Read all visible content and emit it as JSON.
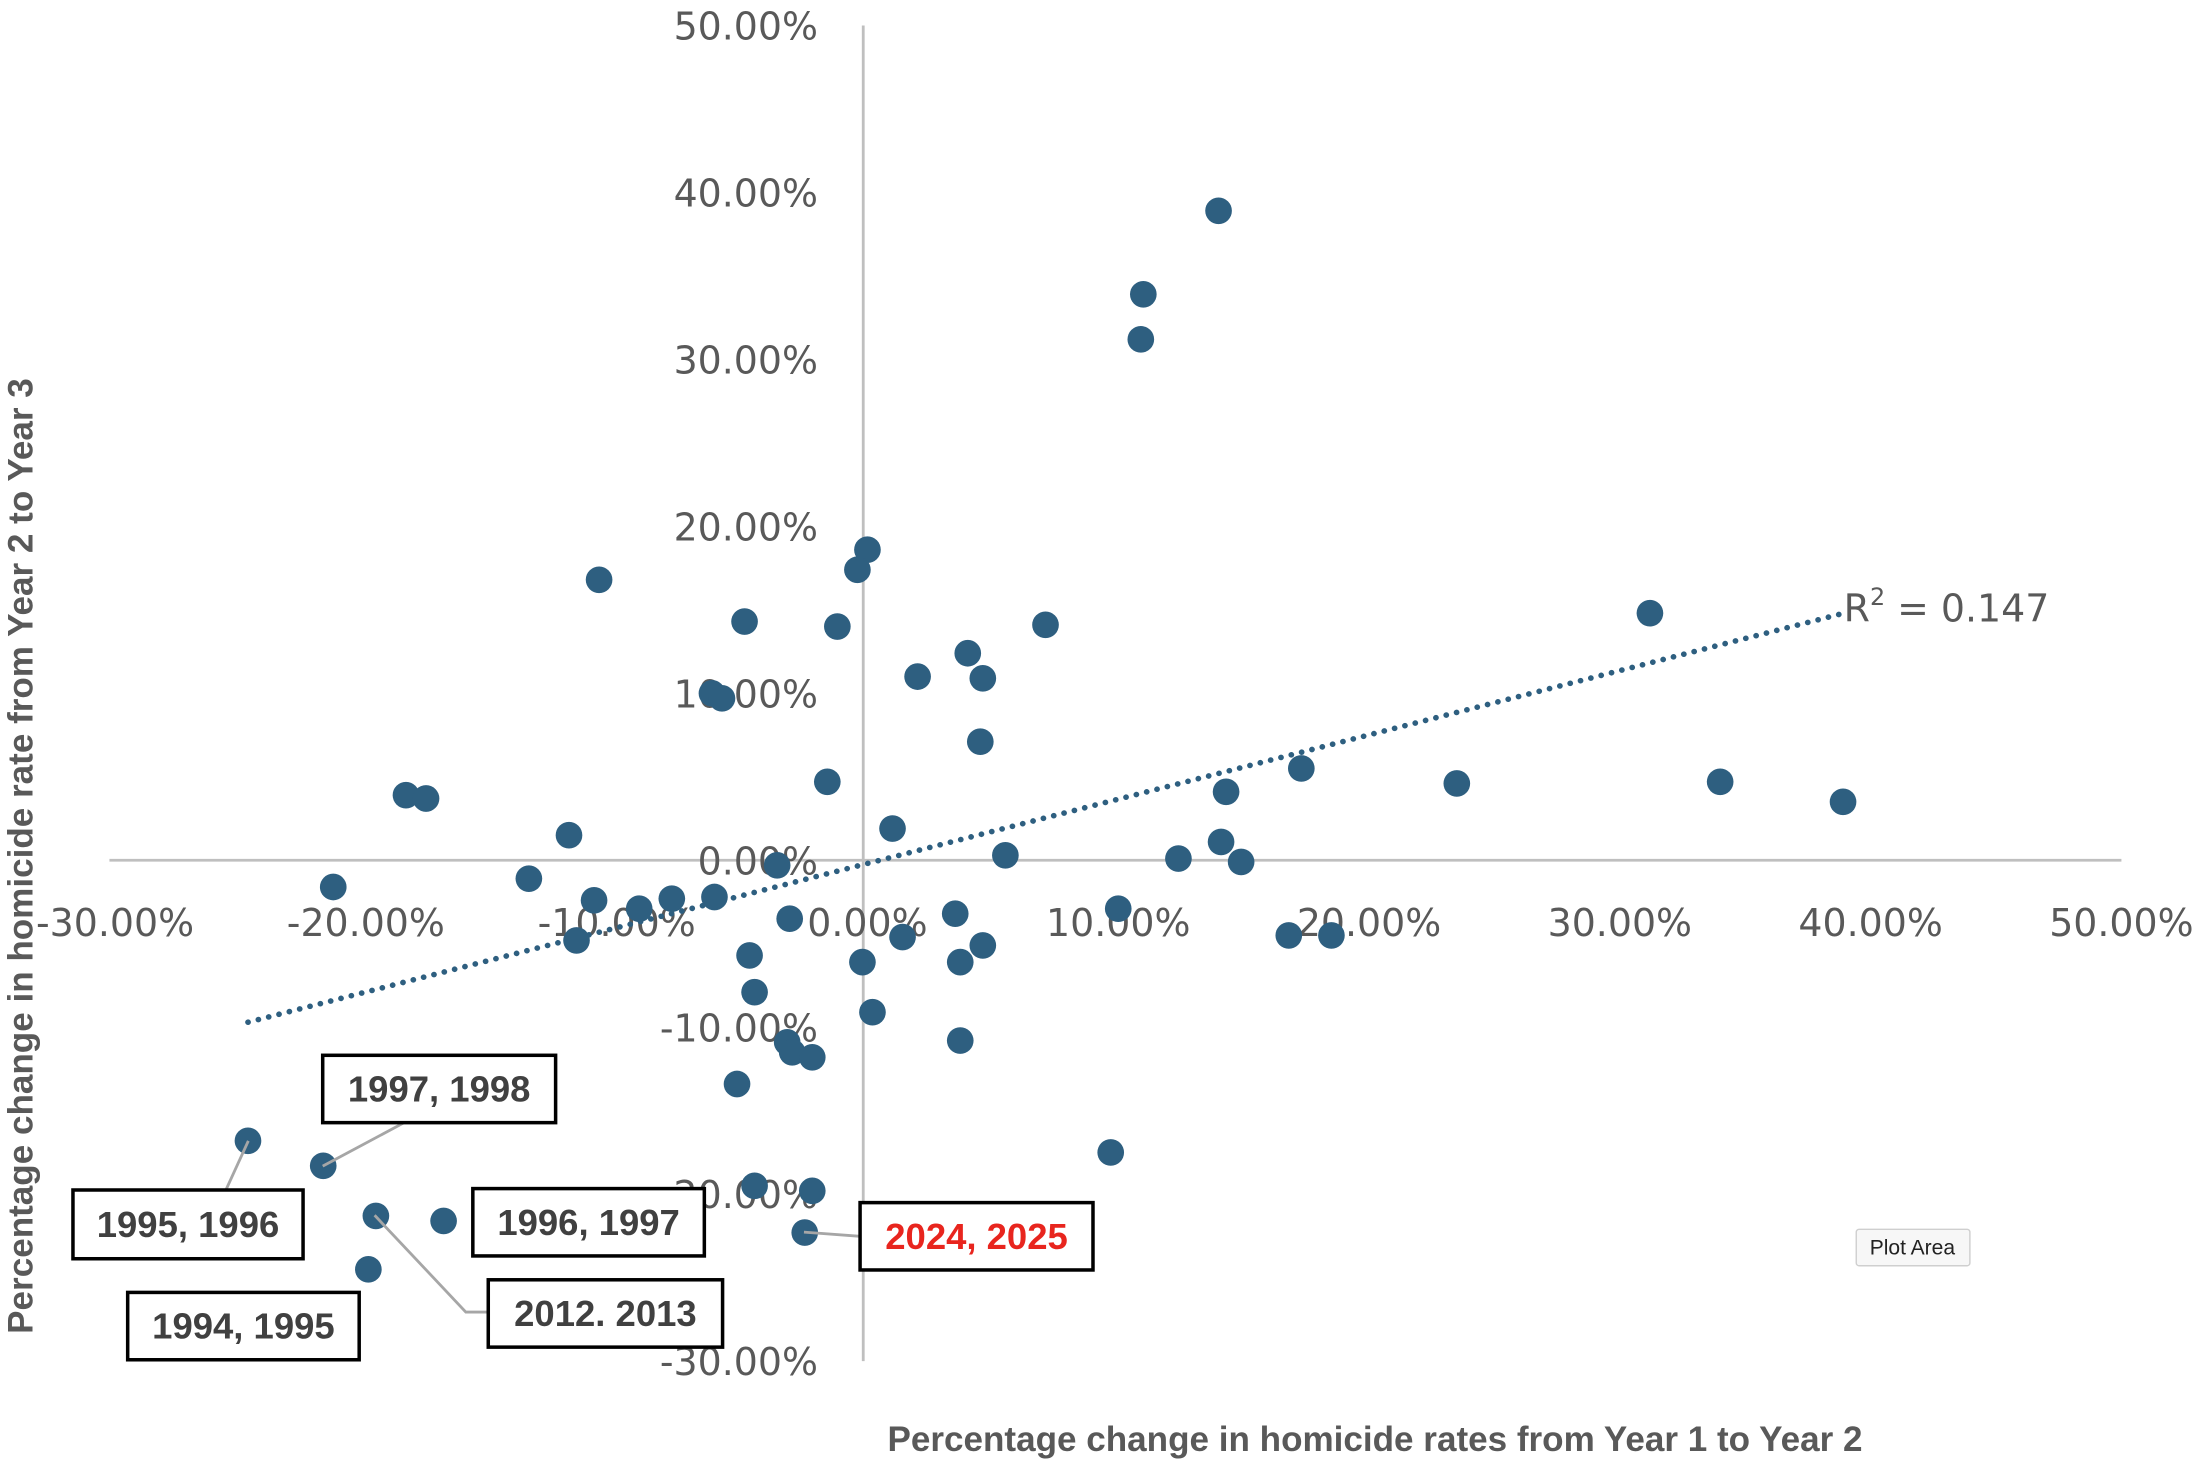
{
  "chart_data": {
    "type": "scatter",
    "xlabel": "Percentage change in homicide rates from Year 1 to Year 2",
    "ylabel": "Percentage change in homicide rate from Year 2 to Year 3",
    "xlim": [
      -30,
      50
    ],
    "ylim": [
      -30,
      50
    ],
    "x_ticks": [
      -30,
      -20,
      -10,
      0,
      10,
      20,
      30,
      40,
      50
    ],
    "y_ticks": [
      -30,
      -20,
      -10,
      0,
      10,
      20,
      30,
      40,
      50
    ],
    "x_tick_labels": [
      "-30.00%",
      "-20.00%",
      "-10.00%",
      "0.00%",
      "10.00%",
      "20.00%",
      "30.00%",
      "40.00%",
      "50.00%"
    ],
    "y_tick_labels": [
      "-30.00%",
      "-20.00%",
      "-10.00%",
      "0.00%",
      "10.00%",
      "20.00%",
      "30.00%",
      "40.00%",
      "50.00%"
    ],
    "grid": false,
    "marker_color": "#2E5F80",
    "points": [
      [
        14.0,
        38.9
      ],
      [
        11.0,
        33.9
      ],
      [
        10.9,
        31.2
      ],
      [
        0.0,
        18.6
      ],
      [
        -0.4,
        17.4
      ],
      [
        -10.7,
        16.8
      ],
      [
        -4.9,
        14.3
      ],
      [
        -1.2,
        14.0
      ],
      [
        7.1,
        14.1
      ],
      [
        4.0,
        12.4
      ],
      [
        2.0,
        11.0
      ],
      [
        4.6,
        10.9
      ],
      [
        -6.2,
        10.0
      ],
      [
        -5.8,
        9.7
      ],
      [
        4.5,
        7.1
      ],
      [
        -1.6,
        4.7
      ],
      [
        -18.4,
        3.9
      ],
      [
        -17.6,
        3.7
      ],
      [
        1.0,
        1.9
      ],
      [
        -11.9,
        1.5
      ],
      [
        5.5,
        0.3
      ],
      [
        -3.6,
        -0.3
      ],
      [
        -21.3,
        -1.6
      ],
      [
        -13.5,
        -1.1
      ],
      [
        -10.9,
        -2.4
      ],
      [
        -9.1,
        -2.9
      ],
      [
        -7.8,
        -2.3
      ],
      [
        -6.1,
        -2.2
      ],
      [
        -3.1,
        -3.5
      ],
      [
        -11.6,
        -4.8
      ],
      [
        1.4,
        -4.6
      ],
      [
        3.5,
        -3.2
      ],
      [
        -0.2,
        -6.1
      ],
      [
        3.7,
        -6.1
      ],
      [
        4.6,
        -5.1
      ],
      [
        -4.7,
        -5.7
      ],
      [
        -4.5,
        -7.9
      ],
      [
        0.2,
        -9.1
      ],
      [
        3.7,
        -10.8
      ],
      [
        -3.2,
        -10.9
      ],
      [
        -3.0,
        -11.5
      ],
      [
        -2.2,
        -11.8
      ],
      [
        -5.2,
        -13.4
      ],
      [
        10.0,
        -2.9
      ],
      [
        12.4,
        0.1
      ],
      [
        14.1,
        1.1
      ],
      [
        14.3,
        4.1
      ],
      [
        14.9,
        -0.1
      ],
      [
        17.3,
        5.5
      ],
      [
        16.8,
        -4.5
      ],
      [
        18.5,
        -4.5
      ],
      [
        23.5,
        4.6
      ],
      [
        31.2,
        14.8
      ],
      [
        34.0,
        4.7
      ],
      [
        38.9,
        3.5
      ],
      [
        9.7,
        -17.5
      ],
      [
        -24.7,
        -16.8
      ],
      [
        -21.7,
        -18.3
      ],
      [
        -19.6,
        -21.3
      ],
      [
        -16.9,
        -21.6
      ],
      [
        -19.9,
        -24.5
      ],
      [
        -4.5,
        -19.5
      ],
      [
        -2.2,
        -19.8
      ],
      [
        -2.5,
        -22.3
      ]
    ],
    "trendline": {
      "type": "linear",
      "style": "dotted",
      "color": "#2E5F80",
      "slope": 0.385,
      "intercept": -0.19,
      "x_range": [
        -24.7,
        38.9
      ],
      "r_squared_label": "R",
      "r_squared_sup": "2",
      "r_squared_value": " = 0.147"
    },
    "annotations": [
      {
        "text": "1995, 1996",
        "point": [
          -24.7,
          -16.8
        ],
        "color": "#404040"
      },
      {
        "text": "1997, 1998",
        "point": [
          -21.7,
          -18.3
        ],
        "color": "#404040"
      },
      {
        "text": "2012. 2013",
        "point": [
          -19.6,
          -21.3
        ],
        "color": "#404040"
      },
      {
        "text": "1996, 1997",
        "point": [
          -16.9,
          -21.6
        ],
        "color": "#404040"
      },
      {
        "text": "1994, 1995",
        "point": [
          -19.9,
          -24.5
        ],
        "color": "#404040"
      },
      {
        "text": "2024, 2025",
        "point": [
          -2.5,
          -22.3
        ],
        "color": "#E8251E"
      }
    ]
  },
  "tooltip": {
    "text": "Plot Area"
  }
}
